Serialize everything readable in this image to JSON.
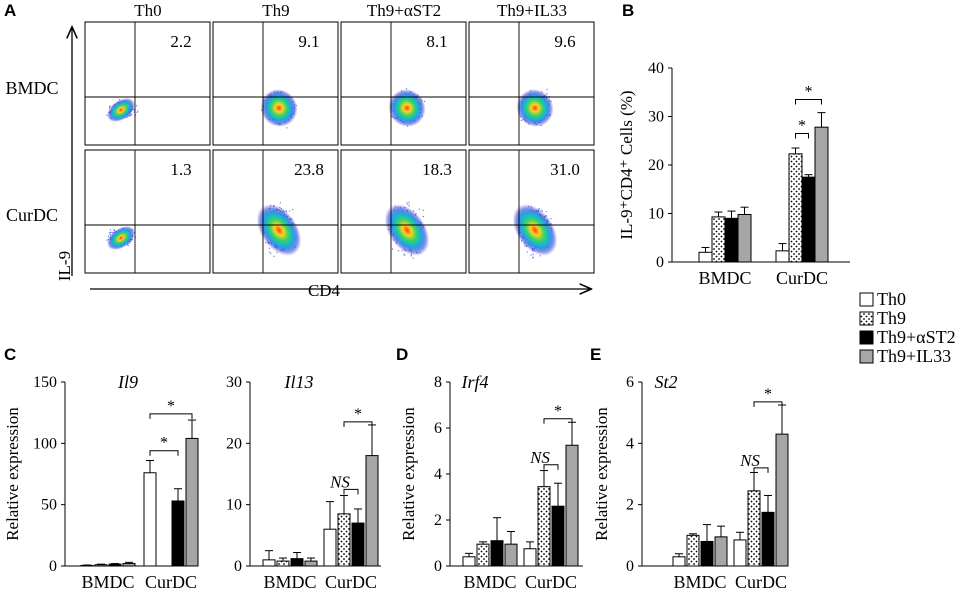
{
  "panel_labels": {
    "A": "A",
    "B": "B",
    "C": "C",
    "D": "D",
    "E": "E"
  },
  "legend": [
    "Th0",
    "Th9",
    "Th9+αST2",
    "Th9+IL33"
  ],
  "flow": {
    "columns": [
      "Th0",
      "Th9",
      "Th9+αST2",
      "Th9+IL33"
    ],
    "rows": [
      "BMDC",
      "CurDC"
    ],
    "percentages": [
      [
        "2.2",
        "9.1",
        "8.1",
        "9.6"
      ],
      [
        "1.3",
        "23.8",
        "18.3",
        "31.0"
      ]
    ],
    "xlabel": "CD4",
    "ylabel": "IL-9"
  },
  "chart_data": [
    {
      "panel": "B",
      "type": "bar",
      "title": "",
      "categories": [
        "BMDC",
        "CurDC"
      ],
      "ylabel": "IL-9⁺CD4⁺ Cells (%)",
      "ylim": [
        0,
        40
      ],
      "yticks": [
        "0",
        "10",
        "20",
        "30",
        "40"
      ],
      "series": [
        {
          "name": "Th0",
          "values": [
            2.0,
            2.3
          ],
          "errors": [
            1.0,
            1.5
          ]
        },
        {
          "name": "Th9",
          "values": [
            9.3,
            22.3
          ],
          "errors": [
            1.0,
            1.2
          ]
        },
        {
          "name": "Th9+αST2",
          "values": [
            9.0,
            17.5
          ],
          "errors": [
            1.5,
            0.5
          ]
        },
        {
          "name": "Th9+IL33",
          "values": [
            9.8,
            27.8
          ],
          "errors": [
            1.5,
            3.0
          ]
        }
      ],
      "annotations": [
        {
          "text": "*",
          "from": 1,
          "to": 2,
          "group": 1,
          "level": 26.5
        },
        {
          "text": "*",
          "from": 1,
          "to": 3,
          "group": 1,
          "level": 33.5
        }
      ]
    },
    {
      "panel": "C",
      "type": "bar",
      "title": "Il9",
      "categories": [
        "BMDC",
        "CurDC"
      ],
      "ylabel": "Relative expression",
      "ylim": [
        0,
        150
      ],
      "yticks": [
        "0",
        "50",
        "100",
        "150"
      ],
      "series": [
        {
          "name": "Th0",
          "values": [
            0.5,
            76
          ],
          "errors": [
            0.3,
            10
          ]
        },
        {
          "name": "Th9",
          "values": [
            1.0,
            0
          ],
          "errors": [
            0.5,
            0
          ]
        },
        {
          "name": "Th9+αST2",
          "values": [
            1.5,
            53
          ],
          "errors": [
            0.5,
            10
          ]
        },
        {
          "name": "Th9+IL33",
          "values": [
            2.0,
            104
          ],
          "errors": [
            1.0,
            15
          ]
        }
      ],
      "annotations": [
        {
          "text": "*",
          "from": 0,
          "to": 2,
          "group": 1,
          "level": 94
        },
        {
          "text": "*",
          "from": 0,
          "to": 3,
          "group": 1,
          "level": 124
        }
      ]
    },
    {
      "panel": "C",
      "type": "bar",
      "title": "Il13",
      "categories": [
        "BMDC",
        "CurDC"
      ],
      "ylabel": "",
      "ylim": [
        0,
        30
      ],
      "yticks": [
        "0",
        "10",
        "20",
        "30"
      ],
      "series": [
        {
          "name": "Th0",
          "values": [
            1.0,
            6.0
          ],
          "errors": [
            1.5,
            4.5
          ]
        },
        {
          "name": "Th9",
          "values": [
            0.8,
            8.5
          ],
          "errors": [
            0.5,
            3.0
          ]
        },
        {
          "name": "Th9+αST2",
          "values": [
            1.2,
            7.0
          ],
          "errors": [
            1.0,
            2.3
          ]
        },
        {
          "name": "Th9+IL33",
          "values": [
            0.8,
            18.0
          ],
          "errors": [
            0.5,
            5.0
          ]
        }
      ],
      "annotations": [
        {
          "text": "NS",
          "from": 1,
          "to": 2,
          "group": 1,
          "level": 12.5
        },
        {
          "text": "*",
          "from": 1,
          "to": 3,
          "group": 1,
          "level": 23.5
        }
      ]
    },
    {
      "panel": "D",
      "type": "bar",
      "title": "Irf4",
      "categories": [
        "BMDC",
        "CurDC"
      ],
      "ylabel": "Relative expression",
      "ylim": [
        0,
        8
      ],
      "yticks": [
        "0",
        "2",
        "4",
        "6",
        "8"
      ],
      "series": [
        {
          "name": "Th0",
          "values": [
            0.4,
            0.75
          ],
          "errors": [
            0.15,
            0.3
          ]
        },
        {
          "name": "Th9",
          "values": [
            0.95,
            3.45
          ],
          "errors": [
            0.1,
            0.7
          ]
        },
        {
          "name": "Th9+αST2",
          "values": [
            1.1,
            2.6
          ],
          "errors": [
            1.0,
            1.0
          ]
        },
        {
          "name": "Th9+IL33",
          "values": [
            0.95,
            5.25
          ],
          "errors": [
            0.55,
            1.0
          ]
        }
      ],
      "annotations": [
        {
          "text": "NS",
          "from": 1,
          "to": 2,
          "group": 1,
          "level": 4.4
        },
        {
          "text": "*",
          "from": 1,
          "to": 3,
          "group": 1,
          "level": 6.4
        }
      ]
    },
    {
      "panel": "E",
      "type": "bar",
      "title": "St2",
      "categories": [
        "BMDC",
        "CurDC"
      ],
      "ylabel": "Relative expression",
      "ylim": [
        0,
        6
      ],
      "yticks": [
        "0",
        "2",
        "4",
        "6"
      ],
      "series": [
        {
          "name": "Th0",
          "values": [
            0.3,
            0.85
          ],
          "errors": [
            0.1,
            0.25
          ]
        },
        {
          "name": "Th9",
          "values": [
            1.0,
            2.45
          ],
          "errors": [
            0.05,
            0.6
          ]
        },
        {
          "name": "Th9+αST2",
          "values": [
            0.8,
            1.75
          ],
          "errors": [
            0.55,
            0.55
          ]
        },
        {
          "name": "Th9+IL33",
          "values": [
            0.95,
            4.3
          ],
          "errors": [
            0.35,
            0.95
          ]
        }
      ],
      "annotations": [
        {
          "text": "NS",
          "from": 1,
          "to": 2,
          "group": 1,
          "level": 3.2
        },
        {
          "text": "*",
          "from": 1,
          "to": 3,
          "group": 1,
          "level": 5.35
        }
      ]
    }
  ]
}
